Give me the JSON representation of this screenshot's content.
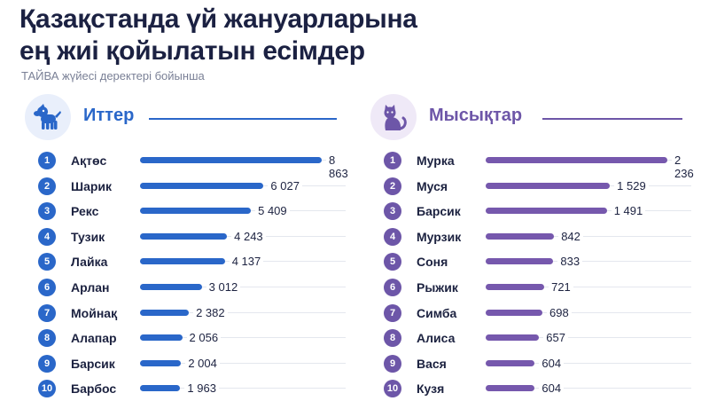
{
  "header": {
    "title_line1": "Қазақстанда үй жануарларына",
    "title_line2": "ең жиі қойылатын есімдер",
    "subtitle": "ТАЙВА жүйесі деректері бойынша"
  },
  "colors": {
    "dogs": "#2a67c9",
    "cats": "#6d56a8"
  },
  "icons": {
    "dogs": "dog-icon",
    "cats": "cat-icon"
  },
  "chart_data": [
    {
      "type": "bar",
      "title": "Иттер",
      "categories": [
        "Ақтөс",
        "Шарик",
        "Рекс",
        "Тузик",
        "Лайка",
        "Арлан",
        "Мойнақ",
        "Алапар",
        "Барсик",
        "Барбос"
      ],
      "ranks": [
        "1",
        "2",
        "3",
        "4",
        "5",
        "6",
        "7",
        "8",
        "9",
        "10"
      ],
      "values": [
        8863,
        6027,
        5409,
        4243,
        4137,
        3012,
        2382,
        2056,
        2004,
        1963
      ],
      "labels": [
        "8 863",
        "6 027",
        "5 409",
        "4 243",
        "4 137",
        "3 012",
        "2 382",
        "2 056",
        "2 004",
        "1 963"
      ],
      "xlim": [
        0,
        8863
      ],
      "grid": false,
      "orientation": "horizontal"
    },
    {
      "type": "bar",
      "title": "Мысықтар",
      "categories": [
        "Мурка",
        "Муся",
        "Барсик",
        "Мурзик",
        "Соня",
        "Рыжик",
        "Симба",
        "Алиса",
        "Вася",
        "Кузя"
      ],
      "ranks": [
        "1",
        "2",
        "3",
        "4",
        "5",
        "6",
        "7",
        "8",
        "9",
        "10"
      ],
      "values": [
        2236,
        1529,
        1491,
        842,
        833,
        721,
        698,
        657,
        604,
        604
      ],
      "labels": [
        "2 236",
        "1 529",
        "1 491",
        "842",
        "833",
        "721",
        "698",
        "657",
        "604",
        "604"
      ],
      "xlim": [
        0,
        2236
      ],
      "grid": false,
      "orientation": "horizontal"
    }
  ]
}
